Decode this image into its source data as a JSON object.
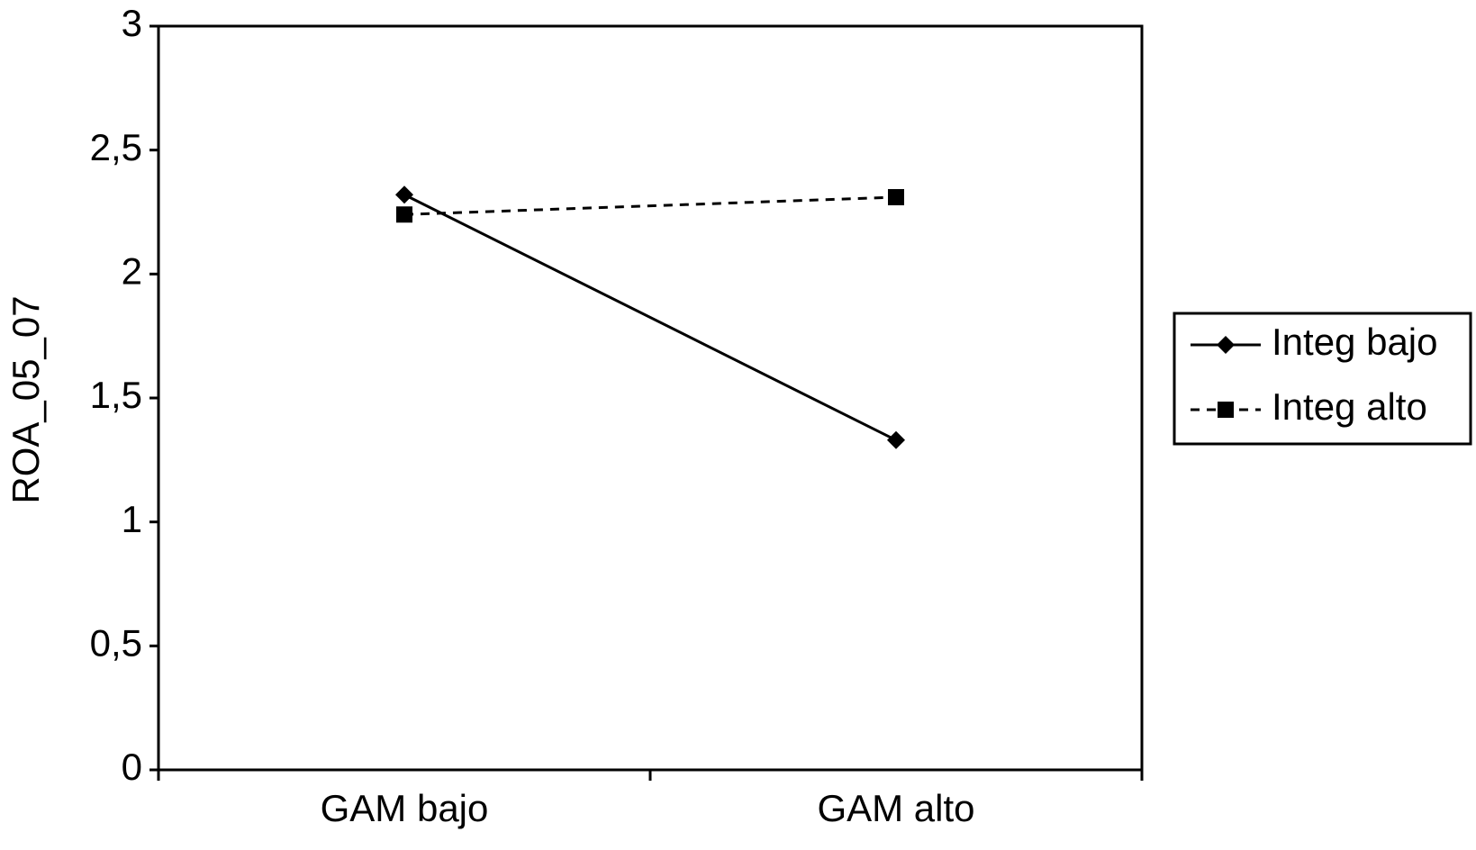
{
  "chart_data": {
    "type": "line",
    "y_label": "ROA_05_07",
    "categories": [
      "GAM bajo",
      "GAM alto"
    ],
    "series": [
      {
        "name": "Integ bajo",
        "color": "#000000",
        "marker": "diamond",
        "dash": "solid",
        "values": [
          2.32,
          1.33
        ]
      },
      {
        "name": "Integ alto",
        "color": "#000000",
        "marker": "square",
        "dash": "dashed",
        "values": [
          2.24,
          2.31
        ]
      }
    ],
    "ylim": [
      0,
      3
    ],
    "yticks": [
      0,
      {
        "value": 0.5,
        "label": "0,5"
      },
      1,
      {
        "value": 1.5,
        "label": "1,5"
      },
      2,
      {
        "value": 2.5,
        "label": "2,5"
      },
      3
    ],
    "legend": "right"
  }
}
